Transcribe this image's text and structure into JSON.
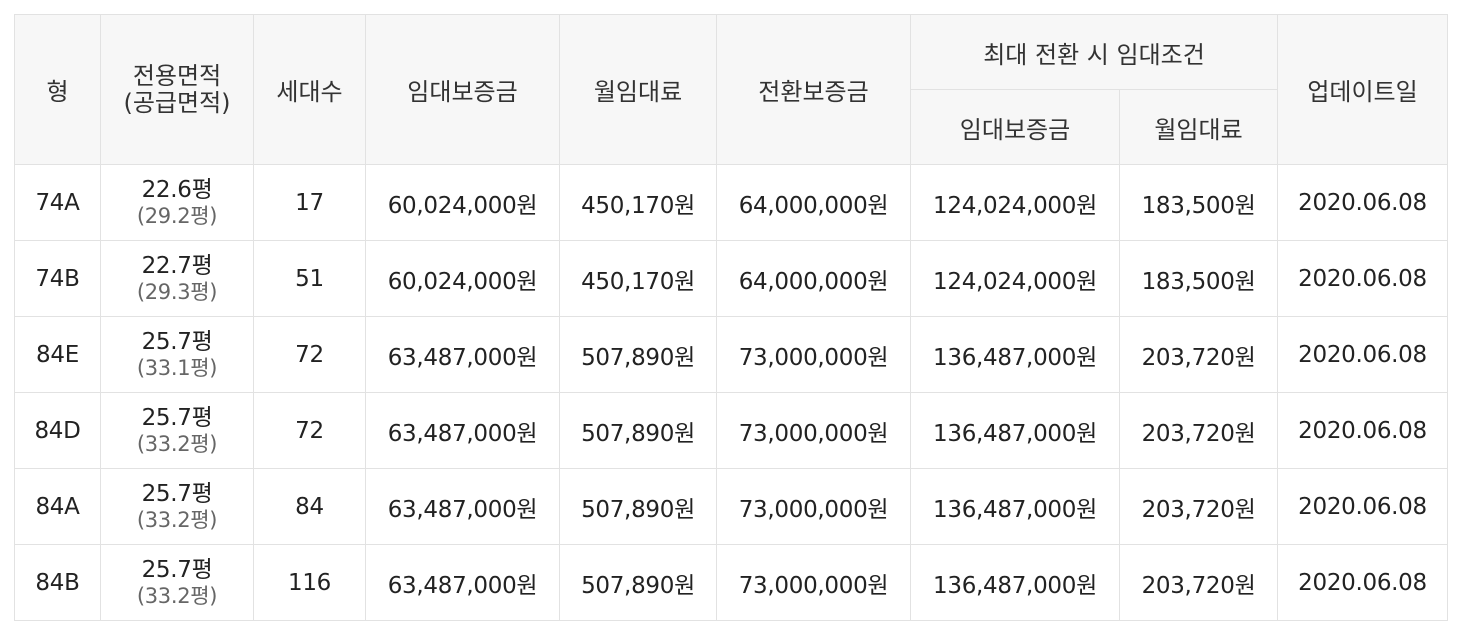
{
  "table": {
    "headers": {
      "type": "형",
      "area": "전용면적",
      "area_supply": "(공급면적)",
      "households": "세대수",
      "deposit": "임대보증금",
      "monthly": "월임대료",
      "conversion_deposit": "전환보증금",
      "max_conversion": "최대 전환 시 임대조건",
      "max_deposit": "임대보증금",
      "max_monthly": "월임대료",
      "updated": "업데이트일"
    },
    "rows": [
      {
        "type": "74A",
        "area": "22.6평",
        "area_supply": "(29.2평)",
        "households": "17",
        "deposit": "60,024,000원",
        "monthly": "450,170원",
        "conversion_deposit": "64,000,000원",
        "max_deposit": "124,024,000원",
        "max_monthly": "183,500원",
        "updated": "2020.06.08"
      },
      {
        "type": "74B",
        "area": "22.7평",
        "area_supply": "(29.3평)",
        "households": "51",
        "deposit": "60,024,000원",
        "monthly": "450,170원",
        "conversion_deposit": "64,000,000원",
        "max_deposit": "124,024,000원",
        "max_monthly": "183,500원",
        "updated": "2020.06.08"
      },
      {
        "type": "84E",
        "area": "25.7평",
        "area_supply": "(33.1평)",
        "households": "72",
        "deposit": "63,487,000원",
        "monthly": "507,890원",
        "conversion_deposit": "73,000,000원",
        "max_deposit": "136,487,000원",
        "max_monthly": "203,720원",
        "updated": "2020.06.08"
      },
      {
        "type": "84D",
        "area": "25.7평",
        "area_supply": "(33.2평)",
        "households": "72",
        "deposit": "63,487,000원",
        "monthly": "507,890원",
        "conversion_deposit": "73,000,000원",
        "max_deposit": "136,487,000원",
        "max_monthly": "203,720원",
        "updated": "2020.06.08"
      },
      {
        "type": "84A",
        "area": "25.7평",
        "area_supply": "(33.2평)",
        "households": "84",
        "deposit": "63,487,000원",
        "monthly": "507,890원",
        "conversion_deposit": "73,000,000원",
        "max_deposit": "136,487,000원",
        "max_monthly": "203,720원",
        "updated": "2020.06.08"
      },
      {
        "type": "84B",
        "area": "25.7평",
        "area_supply": "(33.2평)",
        "households": "116",
        "deposit": "63,487,000원",
        "monthly": "507,890원",
        "conversion_deposit": "73,000,000원",
        "max_deposit": "136,487,000원",
        "max_monthly": "203,720원",
        "updated": "2020.06.08"
      }
    ]
  }
}
